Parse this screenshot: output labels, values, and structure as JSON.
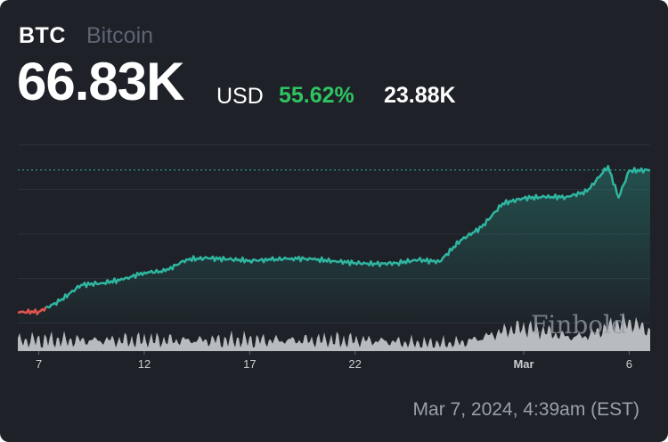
{
  "header": {
    "ticker": "BTC",
    "name": "Bitcoin",
    "price": "66.83K",
    "currency": "USD",
    "change_pct": "55.62%",
    "change_abs": "23.88K"
  },
  "watermark": "Finbold",
  "timestamp": "Mar 7, 2024, 4:39am (EST)",
  "colors": {
    "background": "#1e2127",
    "line_up": "#2fb5a0",
    "line_down": "#e0564e",
    "positive": "#2fc462",
    "volume": "#c9ccd1"
  },
  "chart_data": {
    "type": "area",
    "title": "",
    "x_axis": {
      "type": "date",
      "range": [
        "2024-02-06",
        "2024-03-07"
      ],
      "tick_labels": [
        "7",
        "12",
        "17",
        "22",
        "Mar",
        "6"
      ],
      "tick_dates": [
        "2024-02-07",
        "2024-02-12",
        "2024-02-17",
        "2024-02-22",
        "2024-03-01",
        "2024-03-06"
      ]
    },
    "y_axis": {
      "labels_shown": false,
      "range": [
        41000,
        71000
      ],
      "gridlines": 5
    },
    "reference_line": {
      "value": 66830,
      "style": "dotted"
    },
    "series": [
      {
        "x": [
          "2024-02-06",
          "2024-02-07",
          "2024-02-08",
          "2024-02-09",
          "2024-02-10",
          "2024-02-11",
          "2024-02-12",
          "2024-02-13",
          "2024-02-14",
          "2024-02-15",
          "2024-02-16",
          "2024-02-17",
          "2024-02-18",
          "2024-02-19",
          "2024-02-20",
          "2024-02-21",
          "2024-02-22",
          "2024-02-23",
          "2024-02-24",
          "2024-02-25",
          "2024-02-26",
          "2024-02-27",
          "2024-02-28",
          "2024-02-29",
          "2024-03-01",
          "2024-03-02",
          "2024-03-03",
          "2024-03-04",
          "2024-03-05",
          "2024-03-05T12:00",
          "2024-03-06",
          "2024-03-07"
        ],
        "y": [
          42900,
          43000,
          44800,
          47500,
          47800,
          48400,
          49600,
          49800,
          51800,
          52000,
          51800,
          51600,
          51700,
          52000,
          51800,
          51500,
          51200,
          51000,
          51200,
          51700,
          51400,
          55000,
          57200,
          61200,
          62100,
          62300,
          62300,
          63200,
          67500,
          62200,
          66700,
          66830
        ]
      }
    ],
    "volume": {
      "range": [
        "2024-02-06",
        "2024-03-07"
      ],
      "shown": true
    }
  }
}
